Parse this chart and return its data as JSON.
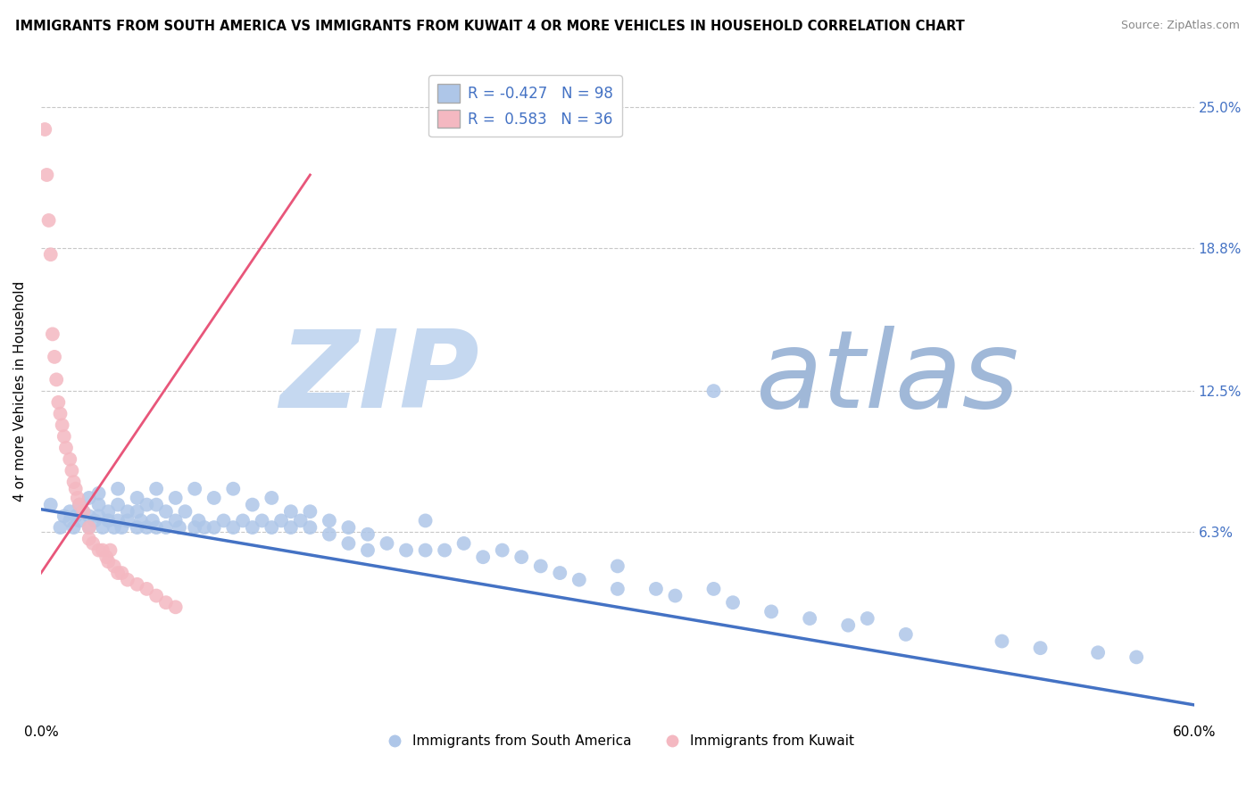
{
  "title": "IMMIGRANTS FROM SOUTH AMERICA VS IMMIGRANTS FROM KUWAIT 4 OR MORE VEHICLES IN HOUSEHOLD CORRELATION CHART",
  "source": "Source: ZipAtlas.com",
  "xlabel_bottom": [
    "0.0%",
    "60.0%"
  ],
  "ylabel_left": "4 or more Vehicles in Household",
  "ylabel_right": [
    "25.0%",
    "18.8%",
    "12.5%",
    "6.3%"
  ],
  "ylabel_right_positions": [
    0.25,
    0.188,
    0.125,
    0.063
  ],
  "xlim": [
    0.0,
    0.6
  ],
  "ylim": [
    -0.02,
    0.27
  ],
  "legend_r1": "R = -0.427",
  "legend_n1": "N = 98",
  "legend_r2": "R =  0.583",
  "legend_n2": "N = 36",
  "blue_color": "#aec6e8",
  "pink_color": "#f4b8c1",
  "blue_line_color": "#4472c4",
  "pink_line_color": "#e8567a",
  "grid_color": "#c8c8c8",
  "watermark_zip": "ZIP",
  "watermark_atlas": "atlas",
  "watermark_color_zip": "#c5d8f0",
  "watermark_color_atlas": "#a0b8d8",
  "blue_trend_x": [
    0.0,
    0.6
  ],
  "blue_trend_y": [
    0.073,
    -0.013
  ],
  "pink_trend_x": [
    0.0,
    0.14
  ],
  "pink_trend_y": [
    0.045,
    0.22
  ],
  "blue_scatter_x": [
    0.005,
    0.01,
    0.012,
    0.015,
    0.015,
    0.017,
    0.018,
    0.02,
    0.02,
    0.022,
    0.025,
    0.025,
    0.025,
    0.028,
    0.03,
    0.03,
    0.03,
    0.032,
    0.035,
    0.035,
    0.038,
    0.04,
    0.04,
    0.04,
    0.042,
    0.045,
    0.045,
    0.05,
    0.05,
    0.05,
    0.052,
    0.055,
    0.055,
    0.058,
    0.06,
    0.06,
    0.06,
    0.065,
    0.065,
    0.07,
    0.07,
    0.072,
    0.075,
    0.08,
    0.08,
    0.082,
    0.085,
    0.09,
    0.09,
    0.095,
    0.1,
    0.1,
    0.105,
    0.11,
    0.11,
    0.115,
    0.12,
    0.12,
    0.125,
    0.13,
    0.13,
    0.135,
    0.14,
    0.14,
    0.15,
    0.15,
    0.16,
    0.16,
    0.17,
    0.17,
    0.18,
    0.19,
    0.2,
    0.2,
    0.21,
    0.22,
    0.23,
    0.24,
    0.25,
    0.26,
    0.27,
    0.28,
    0.3,
    0.3,
    0.32,
    0.33,
    0.35,
    0.36,
    0.38,
    0.4,
    0.42,
    0.43,
    0.45,
    0.5,
    0.52,
    0.55,
    0.57,
    0.35
  ],
  "blue_scatter_y": [
    0.075,
    0.065,
    0.07,
    0.068,
    0.072,
    0.065,
    0.07,
    0.075,
    0.068,
    0.072,
    0.078,
    0.07,
    0.065,
    0.068,
    0.075,
    0.08,
    0.07,
    0.065,
    0.072,
    0.068,
    0.065,
    0.082,
    0.075,
    0.068,
    0.065,
    0.072,
    0.068,
    0.078,
    0.072,
    0.065,
    0.068,
    0.075,
    0.065,
    0.068,
    0.082,
    0.075,
    0.065,
    0.072,
    0.065,
    0.078,
    0.068,
    0.065,
    0.072,
    0.082,
    0.065,
    0.068,
    0.065,
    0.078,
    0.065,
    0.068,
    0.082,
    0.065,
    0.068,
    0.075,
    0.065,
    0.068,
    0.078,
    0.065,
    0.068,
    0.072,
    0.065,
    0.068,
    0.072,
    0.065,
    0.068,
    0.062,
    0.065,
    0.058,
    0.062,
    0.055,
    0.058,
    0.055,
    0.068,
    0.055,
    0.055,
    0.058,
    0.052,
    0.055,
    0.052,
    0.048,
    0.045,
    0.042,
    0.048,
    0.038,
    0.038,
    0.035,
    0.038,
    0.032,
    0.028,
    0.025,
    0.022,
    0.025,
    0.018,
    0.015,
    0.012,
    0.01,
    0.008,
    0.125
  ],
  "pink_scatter_x": [
    0.002,
    0.003,
    0.004,
    0.005,
    0.006,
    0.007,
    0.008,
    0.009,
    0.01,
    0.011,
    0.012,
    0.013,
    0.015,
    0.016,
    0.017,
    0.018,
    0.019,
    0.02,
    0.022,
    0.025,
    0.025,
    0.027,
    0.03,
    0.032,
    0.034,
    0.035,
    0.036,
    0.038,
    0.04,
    0.042,
    0.045,
    0.05,
    0.055,
    0.06,
    0.065,
    0.07
  ],
  "pink_scatter_y": [
    0.24,
    0.22,
    0.2,
    0.185,
    0.15,
    0.14,
    0.13,
    0.12,
    0.115,
    0.11,
    0.105,
    0.1,
    0.095,
    0.09,
    0.085,
    0.082,
    0.078,
    0.075,
    0.072,
    0.065,
    0.06,
    0.058,
    0.055,
    0.055,
    0.052,
    0.05,
    0.055,
    0.048,
    0.045,
    0.045,
    0.042,
    0.04,
    0.038,
    0.035,
    0.032,
    0.03
  ]
}
